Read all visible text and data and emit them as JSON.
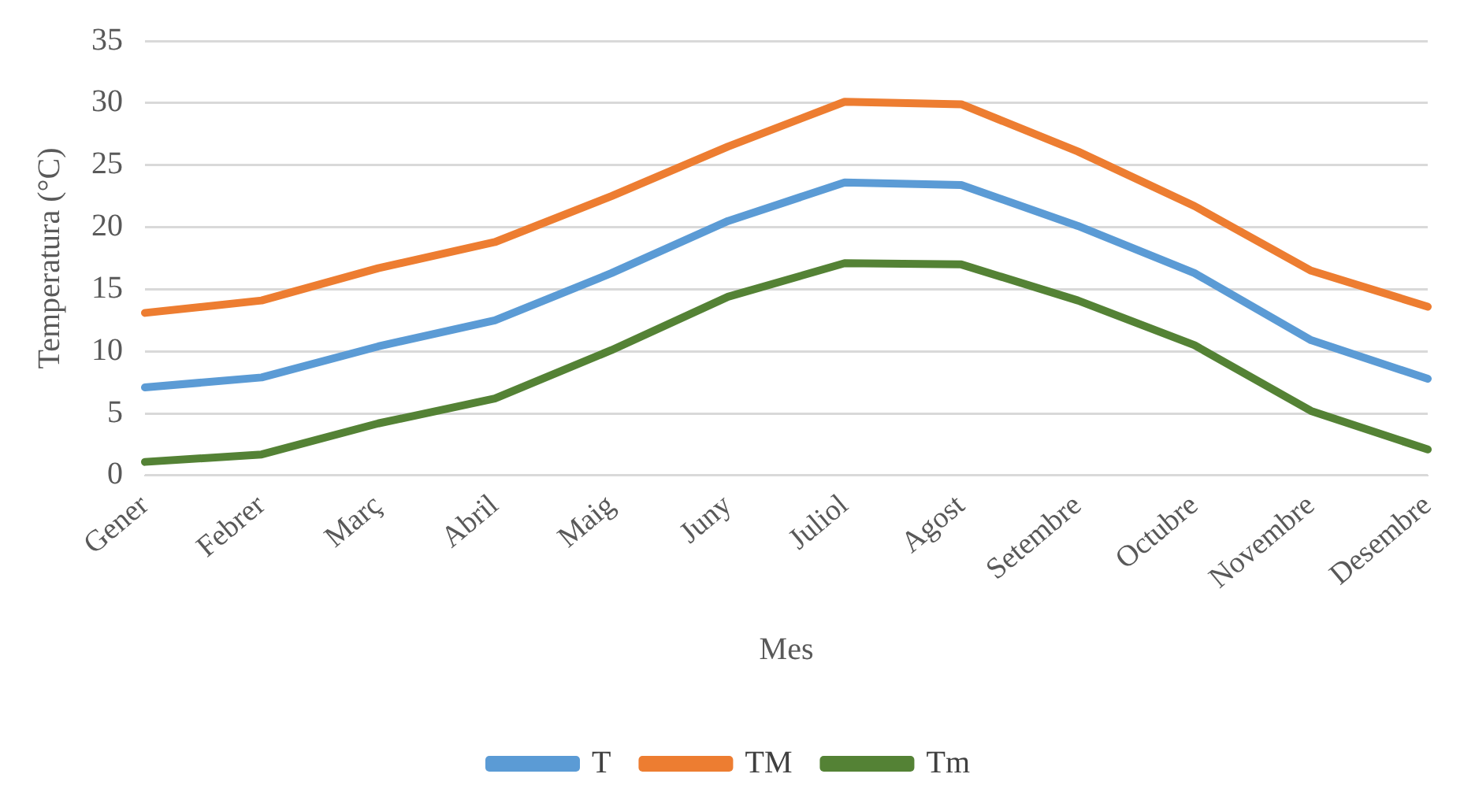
{
  "chart_data": {
    "type": "line",
    "xlabel": "Mes",
    "ylabel": "Temperatura (°C)",
    "categories": [
      "Gener",
      "Febrer",
      "Març",
      "Abril",
      "Maig",
      "Juny",
      "Juliol",
      "Agost",
      "Setembre",
      "Octubre",
      "Novembre",
      "Desembre"
    ],
    "series": [
      {
        "name": "T",
        "color": "#5b9bd5",
        "values": [
          7.1,
          7.9,
          10.4,
          12.5,
          16.3,
          20.5,
          23.6,
          23.4,
          20.1,
          16.3,
          10.9,
          7.8
        ]
      },
      {
        "name": "TM",
        "color": "#ed7d31",
        "values": [
          13.1,
          14.1,
          16.7,
          18.8,
          22.5,
          26.5,
          30.1,
          29.9,
          26.1,
          21.7,
          16.5,
          13.6
        ]
      },
      {
        "name": "Tm",
        "color": "#548235",
        "values": [
          1.1,
          1.7,
          4.2,
          6.2,
          10.1,
          14.4,
          17.1,
          17.0,
          14.1,
          10.5,
          5.2,
          2.1
        ]
      }
    ],
    "ylim": [
      0,
      35
    ],
    "yticks": [
      0,
      5,
      10,
      15,
      20,
      25,
      30,
      35
    ],
    "grid": "y",
    "legend": "bottom",
    "marker": "none",
    "line_style": "solid"
  }
}
